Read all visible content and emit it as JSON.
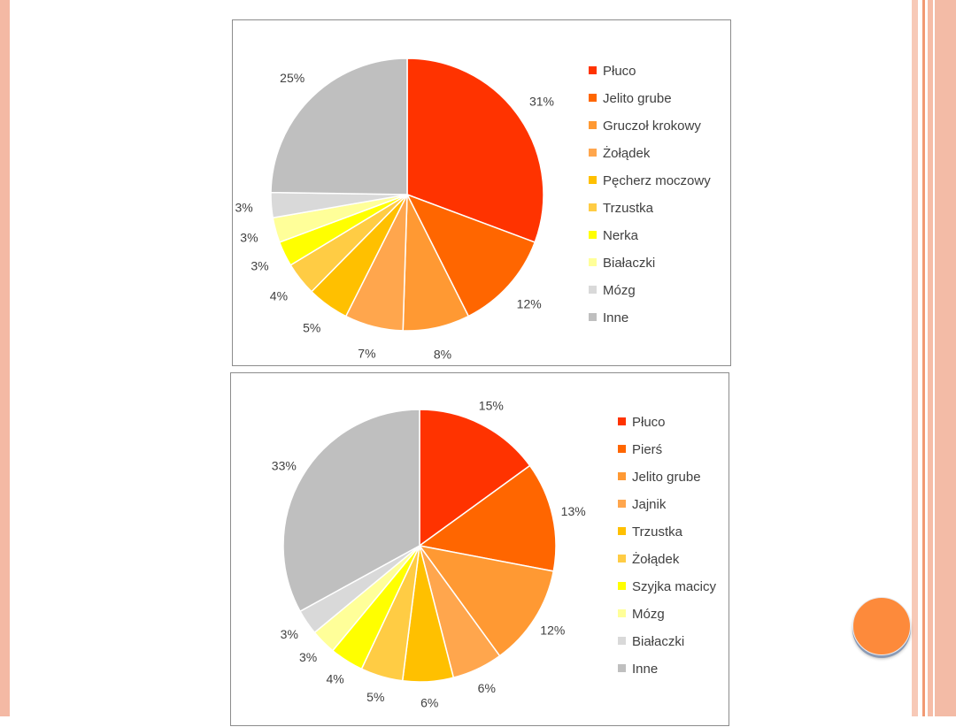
{
  "colors": {
    "left_stripe": "#f4b9a4",
    "right_stripes": [
      "#f7c9b7",
      "#f29a73",
      "#f6bca6",
      "#f3bba6"
    ],
    "accent_circle": "#fd8a3b"
  },
  "decoration": {
    "accent_circle": "orange-circle"
  },
  "chart_data": [
    {
      "type": "pie",
      "title": "",
      "categories": [
        "Płuco",
        "Jelito grube",
        "Gruczoł krokowy",
        "Żołądek",
        "Pęcherz moczowy",
        "Trzustka",
        "Nerka",
        "Białaczki",
        "Mózg",
        "Inne"
      ],
      "values": [
        31,
        12,
        8,
        7,
        5,
        4,
        3,
        3,
        3,
        25
      ],
      "labels": [
        "31%",
        "12%",
        "8%",
        "7%",
        "5%",
        "4%",
        "3%",
        "3%",
        "3%",
        "25%"
      ],
      "colors": [
        "#ff3300",
        "#ff6600",
        "#ff9933",
        "#ffa64d",
        "#ffc000",
        "#ffcc44",
        "#ffff00",
        "#ffff99",
        "#d9d9d9",
        "#bfbfbf"
      ],
      "legend_position": "right",
      "start_angle_deg": 0,
      "direction": "clockwise"
    },
    {
      "type": "pie",
      "title": "",
      "categories": [
        "Płuco",
        "Pierś",
        "Jelito grube",
        "Jajnik",
        "Trzustka",
        "Żołądek",
        "Szyjka macicy",
        "Mózg",
        "Białaczki",
        "Inne"
      ],
      "values": [
        15,
        13,
        12,
        6,
        6,
        5,
        4,
        3,
        3,
        33
      ],
      "labels": [
        "15%",
        "13%",
        "12%",
        "6%",
        "6%",
        "5%",
        "4%",
        "3%",
        "3%",
        "33%"
      ],
      "colors": [
        "#ff3300",
        "#ff6600",
        "#ff9933",
        "#ffa64d",
        "#ffc000",
        "#ffcc44",
        "#ffff00",
        "#ffff99",
        "#d9d9d9",
        "#bfbfbf"
      ],
      "legend_position": "right",
      "start_angle_deg": 0,
      "direction": "clockwise"
    }
  ]
}
